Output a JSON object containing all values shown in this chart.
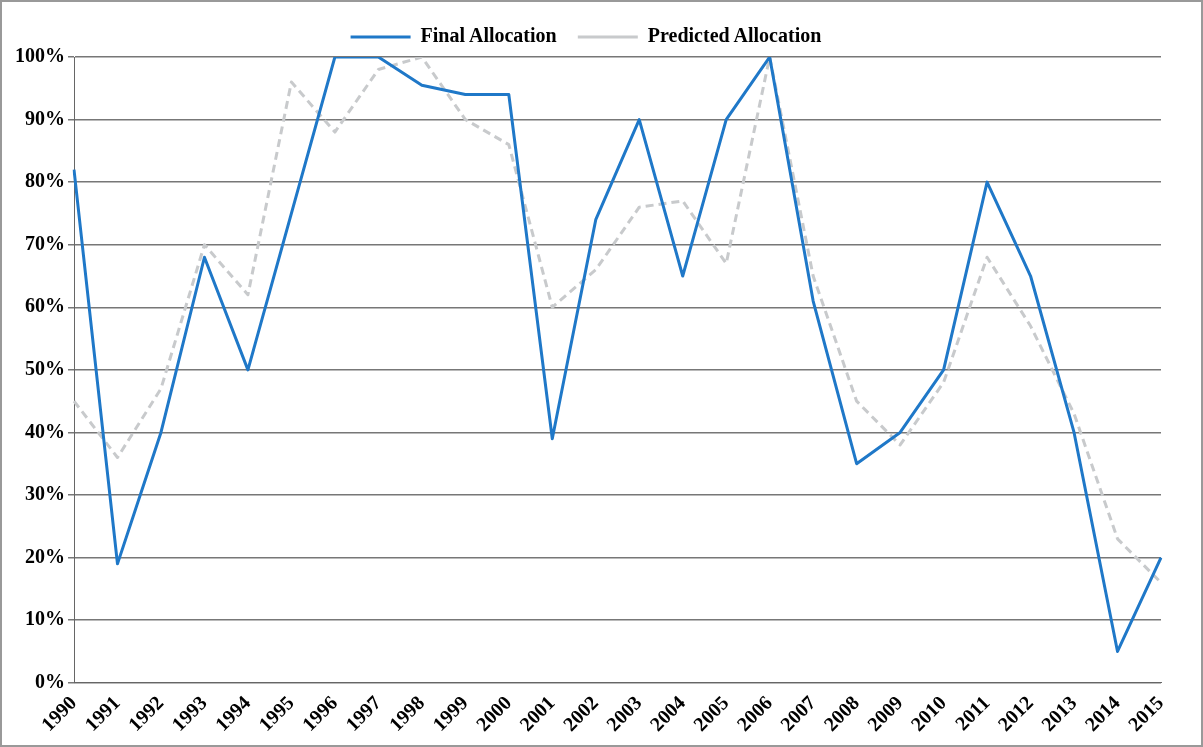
{
  "chart_data": {
    "type": "line",
    "categories": [
      "1990",
      "1991",
      "1992",
      "1993",
      "1994",
      "1995",
      "1996",
      "1997",
      "1998",
      "1999",
      "2000",
      "2001",
      "2002",
      "2003",
      "2004",
      "2005",
      "2006",
      "2007",
      "2008",
      "2009",
      "2010",
      "2011",
      "2012",
      "2013",
      "2014",
      "2015"
    ],
    "series": [
      {
        "name": "Final Allocation",
        "color": "#1f78c8",
        "line_style": "solid",
        "values": [
          82,
          19,
          40,
          68,
          50,
          75,
          100,
          100,
          95.5,
          94,
          94,
          39,
          74,
          90,
          65,
          90,
          100,
          61,
          35,
          40,
          50,
          80,
          65,
          40,
          5,
          20
        ]
      },
      {
        "name": "Predicted Allocation",
        "color": "#c8cacc",
        "line_style": "dashed",
        "values": [
          45,
          36,
          47,
          70,
          62,
          96,
          88,
          98,
          100,
          90,
          86,
          60,
          66,
          76,
          77,
          67,
          100,
          65,
          45,
          38,
          48,
          68,
          57,
          43,
          23,
          16
        ]
      }
    ],
    "ylim": [
      0,
      100
    ],
    "yticks": [
      {
        "value": 0,
        "label": "0%"
      },
      {
        "value": 10,
        "label": "10%"
      },
      {
        "value": 20,
        "label": "20%"
      },
      {
        "value": 30,
        "label": "30%"
      },
      {
        "value": 40,
        "label": "40%"
      },
      {
        "value": 50,
        "label": "50%"
      },
      {
        "value": 60,
        "label": "60%"
      },
      {
        "value": 70,
        "label": "70%"
      },
      {
        "value": 80,
        "label": "80%"
      },
      {
        "value": 90,
        "label": "90%"
      },
      {
        "value": 100,
        "label": "100%"
      }
    ],
    "grid": "y",
    "legend": "top",
    "marker": "none"
  }
}
